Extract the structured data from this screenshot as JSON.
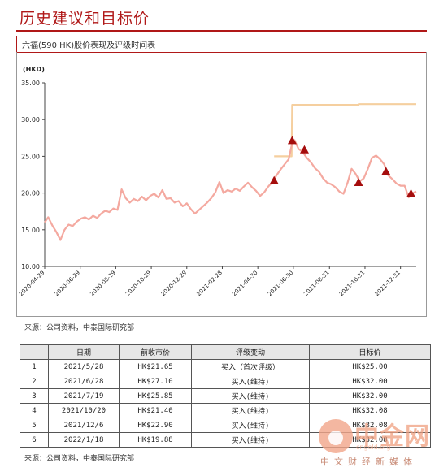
{
  "header": {
    "title": "历史建议和目标价",
    "subtitle": "六福(590 HK)股价表现及评级时间表"
  },
  "chart_data": {
    "type": "line",
    "ylabel": "(HKD)",
    "ylim": [
      10,
      35
    ],
    "yticks": [
      "35.00",
      "30.00",
      "25.00",
      "20.00",
      "15.00",
      "10.00"
    ],
    "xticks": [
      "2020-04-29",
      "2020-06-29",
      "2020-08-29",
      "2020-10-29",
      "2020-12-29",
      "2021-02-28",
      "2021-04-30",
      "2021-06-30",
      "2021-08-31",
      "2021-10-31",
      "2021-12-31"
    ],
    "x_start": "2020-04-29",
    "x_end": "2022-01-27",
    "grid": false,
    "legend": "none",
    "series": [
      {
        "role": "price",
        "color": "#f4a9a0",
        "points": [
          [
            "2020-04-29",
            16.0
          ],
          [
            "2020-05-05",
            16.7
          ],
          [
            "2020-05-12",
            15.6
          ],
          [
            "2020-05-19",
            14.7
          ],
          [
            "2020-05-26",
            13.6
          ],
          [
            "2020-06-02",
            15.0
          ],
          [
            "2020-06-09",
            15.7
          ],
          [
            "2020-06-16",
            15.5
          ],
          [
            "2020-06-23",
            16.1
          ],
          [
            "2020-06-30",
            16.5
          ],
          [
            "2020-07-07",
            16.7
          ],
          [
            "2020-07-14",
            16.4
          ],
          [
            "2020-07-21",
            16.9
          ],
          [
            "2020-07-28",
            16.6
          ],
          [
            "2020-08-04",
            17.2
          ],
          [
            "2020-08-11",
            17.6
          ],
          [
            "2020-08-18",
            17.4
          ],
          [
            "2020-08-25",
            17.9
          ],
          [
            "2020-09-01",
            17.7
          ],
          [
            "2020-09-08",
            20.5
          ],
          [
            "2020-09-15",
            19.3
          ],
          [
            "2020-09-22",
            18.7
          ],
          [
            "2020-09-29",
            19.2
          ],
          [
            "2020-10-06",
            18.9
          ],
          [
            "2020-10-13",
            19.5
          ],
          [
            "2020-10-20",
            19.0
          ],
          [
            "2020-10-27",
            19.6
          ],
          [
            "2020-11-03",
            19.9
          ],
          [
            "2020-11-10",
            19.4
          ],
          [
            "2020-11-17",
            20.4
          ],
          [
            "2020-11-24",
            19.2
          ],
          [
            "2020-12-01",
            19.3
          ],
          [
            "2020-12-08",
            18.7
          ],
          [
            "2020-12-15",
            18.9
          ],
          [
            "2020-12-22",
            18.2
          ],
          [
            "2020-12-29",
            18.6
          ],
          [
            "2021-01-05",
            17.8
          ],
          [
            "2021-01-12",
            17.2
          ],
          [
            "2021-01-19",
            17.7
          ],
          [
            "2021-01-26",
            18.2
          ],
          [
            "2021-02-02",
            18.7
          ],
          [
            "2021-02-09",
            19.3
          ],
          [
            "2021-02-16",
            20.1
          ],
          [
            "2021-02-23",
            21.5
          ],
          [
            "2021-03-02",
            20.0
          ],
          [
            "2021-03-09",
            20.4
          ],
          [
            "2021-03-16",
            20.2
          ],
          [
            "2021-03-23",
            20.6
          ],
          [
            "2021-03-30",
            20.3
          ],
          [
            "2021-04-06",
            20.9
          ],
          [
            "2021-04-13",
            21.4
          ],
          [
            "2021-04-20",
            20.8
          ],
          [
            "2021-04-27",
            20.3
          ],
          [
            "2021-05-04",
            19.6
          ],
          [
            "2021-05-11",
            20.1
          ],
          [
            "2021-05-18",
            20.9
          ],
          [
            "2021-05-25",
            21.5
          ],
          [
            "2021-06-01",
            22.4
          ],
          [
            "2021-06-08",
            23.2
          ],
          [
            "2021-06-15",
            23.9
          ],
          [
            "2021-06-22",
            24.6
          ],
          [
            "2021-06-28",
            26.8
          ],
          [
            "2021-07-02",
            27.2
          ],
          [
            "2021-07-09",
            26.0
          ],
          [
            "2021-07-16",
            25.6
          ],
          [
            "2021-07-23",
            24.8
          ],
          [
            "2021-07-30",
            24.2
          ],
          [
            "2021-08-06",
            23.4
          ],
          [
            "2021-08-13",
            22.9
          ],
          [
            "2021-08-20",
            22.0
          ],
          [
            "2021-08-27",
            21.4
          ],
          [
            "2021-09-03",
            21.2
          ],
          [
            "2021-09-10",
            20.8
          ],
          [
            "2021-09-17",
            20.2
          ],
          [
            "2021-09-24",
            19.9
          ],
          [
            "2021-10-01",
            21.4
          ],
          [
            "2021-10-08",
            23.3
          ],
          [
            "2021-10-15",
            22.6
          ],
          [
            "2021-10-22",
            21.6
          ],
          [
            "2021-10-29",
            22.0
          ],
          [
            "2021-11-05",
            23.3
          ],
          [
            "2021-11-12",
            24.8
          ],
          [
            "2021-11-19",
            25.1
          ],
          [
            "2021-11-26",
            24.6
          ],
          [
            "2021-12-03",
            23.9
          ],
          [
            "2021-12-10",
            22.4
          ],
          [
            "2021-12-17",
            21.9
          ],
          [
            "2021-12-24",
            21.3
          ],
          [
            "2021-12-31",
            21.0
          ],
          [
            "2022-01-07",
            21.0
          ],
          [
            "2022-01-14",
            19.4
          ],
          [
            "2022-01-21",
            20.0
          ],
          [
            "2022-01-27",
            20.2
          ]
        ]
      },
      {
        "role": "target",
        "color": "#f5cf9f",
        "points": [
          [
            "2021-05-28",
            25.0
          ],
          [
            "2021-06-27",
            25.0
          ],
          [
            "2021-06-28",
            32.0
          ],
          [
            "2021-10-19",
            32.0
          ],
          [
            "2021-10-20",
            32.1
          ],
          [
            "2022-01-27",
            32.1
          ]
        ]
      }
    ],
    "markers": [
      {
        "x": "2021-05-28",
        "y": 21.65,
        "color": "#a50d0d"
      },
      {
        "x": "2021-06-28",
        "y": 27.1,
        "color": "#a50d0d"
      },
      {
        "x": "2021-07-19",
        "y": 25.85,
        "color": "#a50d0d"
      },
      {
        "x": "2021-10-20",
        "y": 21.4,
        "color": "#a50d0d"
      },
      {
        "x": "2021-12-06",
        "y": 22.9,
        "color": "#a50d0d"
      },
      {
        "x": "2022-01-18",
        "y": 19.88,
        "color": "#a50d0d"
      }
    ]
  },
  "source_top": "来源：公司资料，中泰国际研究部",
  "table": {
    "headers": [
      "",
      "日期",
      "前收市价",
      "评级变动",
      "目标价"
    ],
    "rows": [
      [
        "1",
        "2021/5/28",
        "HK$21.65",
        "买入（首次评级）",
        "HK$25.00"
      ],
      [
        "2",
        "2021/6/28",
        "HK$27.10",
        "买入(维持)",
        "HK$32.00"
      ],
      [
        "3",
        "2021/7/19",
        "HK$25.85",
        "买入(维持)",
        "HK$32.00"
      ],
      [
        "4",
        "2021/10/20",
        "HK$21.40",
        "买入(维持)",
        "HK$32.08"
      ],
      [
        "5",
        "2021/12/6",
        "HK$22.90",
        "买入(维持)",
        "HK$32.08"
      ],
      [
        "6",
        "2022/1/18",
        "HK$19.88",
        "买入(维持)",
        "HK$32.08"
      ]
    ]
  },
  "source_bottom": "来源：公司资料，中泰国际研究部",
  "watermark": {
    "name": "中金网",
    "url": "cngold.org",
    "tagline": "中文财经新媒体",
    "color": "#f0a080"
  }
}
